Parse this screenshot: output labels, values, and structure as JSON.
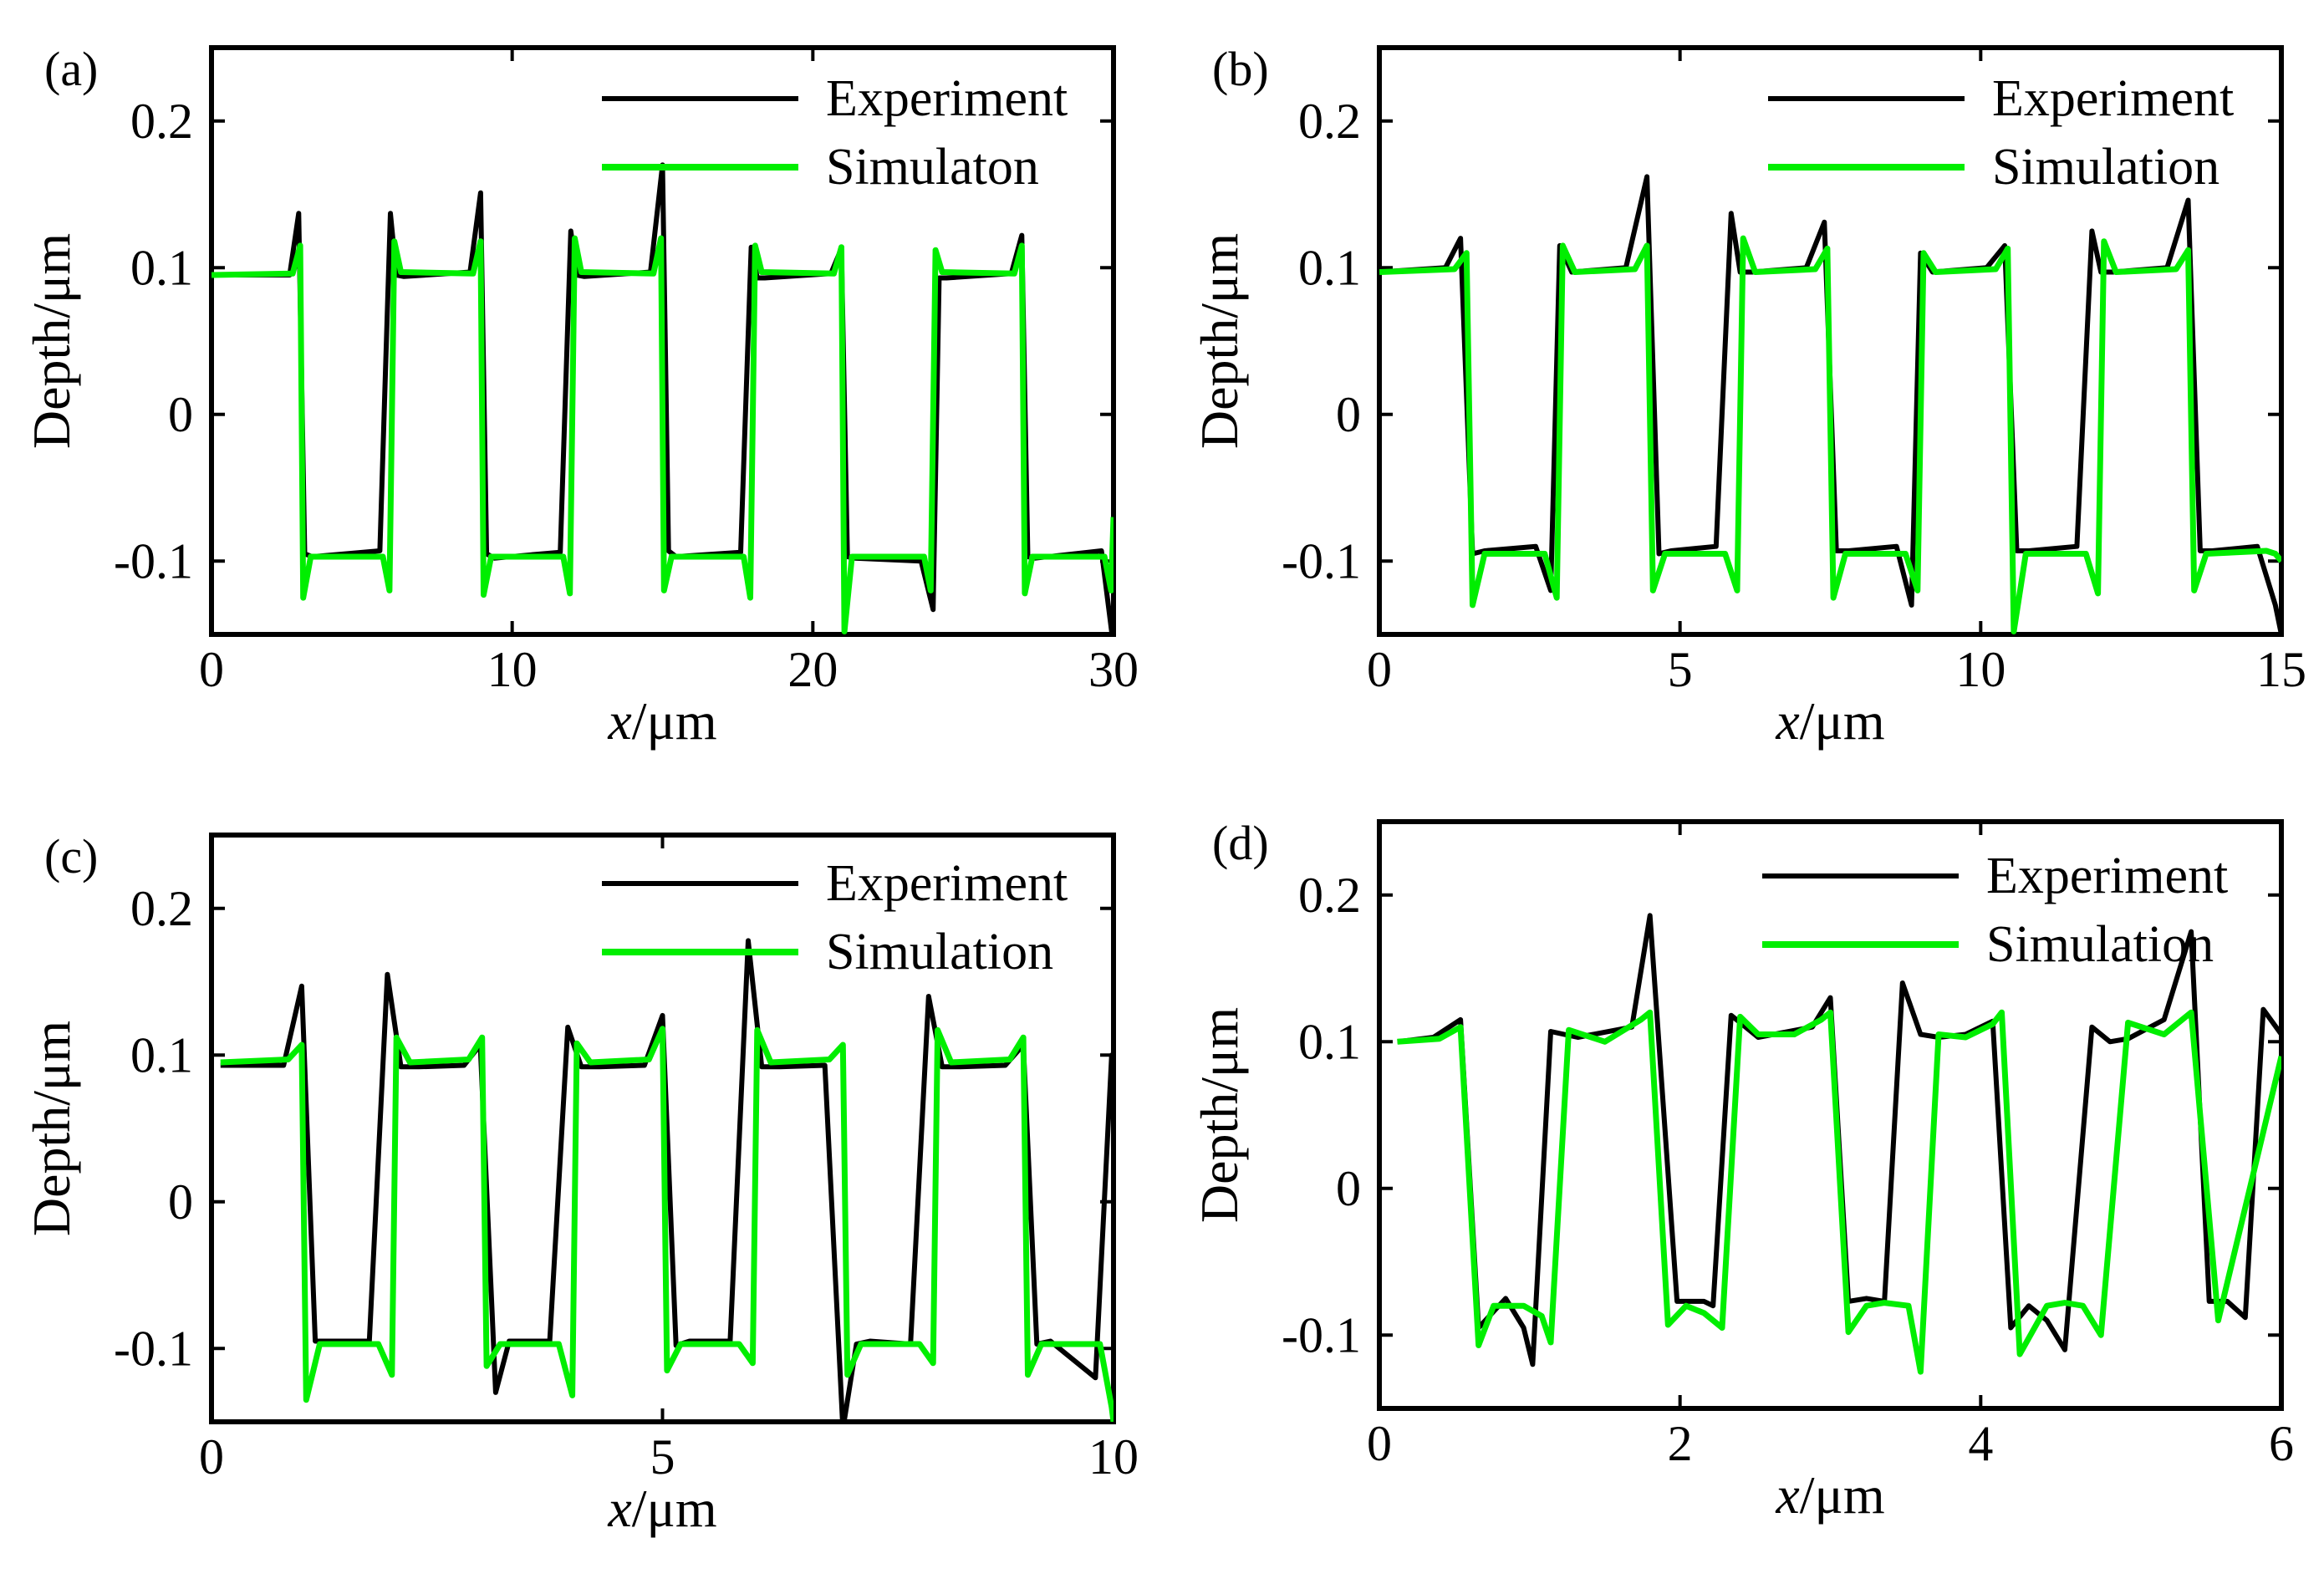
{
  "figure": {
    "x_label_var": "x",
    "x_label_unit": "/μm",
    "y_label": "Depth/μm"
  },
  "colors": {
    "experiment": "#000000",
    "simulation": "#00ee00"
  },
  "chart_data": [
    {
      "type": "line",
      "panel": "(a)",
      "xlabel": "x/μm",
      "ylabel": "Depth/μm",
      "xlim": [
        0,
        30
      ],
      "ylim": [
        -0.15,
        0.25
      ],
      "xticks": [
        "0",
        "10",
        "20",
        "30"
      ],
      "xtick_values": [
        0,
        10,
        20,
        30
      ],
      "yticks": [
        "-0.1",
        "0",
        "0.1",
        "0.2"
      ],
      "ytick_values": [
        -0.1,
        0,
        0.1,
        0.2
      ],
      "period": 6,
      "high": 0.095,
      "low": -0.095,
      "legend": [
        "Experiment",
        "Simulaton"
      ],
      "series": [
        {
          "name": "Experiment",
          "x": [
            0,
            2.6,
            2.9,
            3.1,
            3.35,
            5.6,
            5.95,
            6.15,
            6.4,
            8.6,
            8.95,
            9.15,
            9.4,
            11.6,
            11.95,
            12.15,
            12.4,
            14.6,
            15.0,
            15.2,
            15.45,
            17.6,
            17.95,
            18.15,
            18.4,
            20.6,
            20.95,
            21.15,
            21.4,
            23.6,
            24.0,
            24.2,
            24.45,
            26.6,
            26.95,
            27.15,
            27.4,
            29.6,
            29.95,
            30
          ],
          "y": [
            0.095,
            0.095,
            0.137,
            -0.095,
            -0.097,
            -0.093,
            0.137,
            0.095,
            0.094,
            0.097,
            0.151,
            -0.095,
            -0.098,
            -0.094,
            0.125,
            0.095,
            0.094,
            0.097,
            0.17,
            -0.093,
            -0.097,
            -0.094,
            0.114,
            0.093,
            0.093,
            0.096,
            0.113,
            -0.097,
            -0.098,
            -0.1,
            -0.133,
            0.093,
            0.093,
            0.096,
            0.122,
            -0.097,
            -0.098,
            -0.093,
            -0.15,
            -0.15
          ]
        },
        {
          "name": "Simulaton",
          "x": [
            0,
            2.7,
            2.95,
            3.05,
            3.3,
            5.7,
            5.92,
            6.08,
            6.3,
            8.7,
            8.95,
            9.05,
            9.3,
            11.7,
            11.92,
            12.08,
            12.3,
            14.7,
            14.95,
            15.05,
            15.3,
            17.7,
            17.92,
            18.08,
            18.3,
            20.7,
            20.95,
            21.05,
            21.3,
            23.7,
            23.92,
            24.08,
            24.3,
            26.7,
            26.95,
            27.05,
            27.3,
            29.7,
            29.92,
            30
          ],
          "y": [
            0.095,
            0.096,
            0.115,
            -0.125,
            -0.097,
            -0.097,
            -0.12,
            0.118,
            0.097,
            0.096,
            0.118,
            -0.123,
            -0.097,
            -0.097,
            -0.122,
            0.12,
            0.097,
            0.096,
            0.12,
            -0.12,
            -0.097,
            -0.097,
            -0.125,
            0.115,
            0.097,
            0.096,
            0.114,
            -0.148,
            -0.097,
            -0.097,
            -0.12,
            0.112,
            0.097,
            0.096,
            0.115,
            -0.122,
            -0.097,
            -0.097,
            -0.12,
            -0.07
          ]
        }
      ]
    },
    {
      "type": "line",
      "panel": "(b)",
      "xlabel": "x/μm",
      "ylabel": "Depth/μm",
      "xlim": [
        0,
        15
      ],
      "ylim": [
        -0.15,
        0.25
      ],
      "xticks": [
        "0",
        "5",
        "10",
        "15"
      ],
      "xtick_values": [
        0,
        5,
        10,
        15
      ],
      "yticks": [
        "-0.1",
        "0",
        "0.1",
        "0.2"
      ],
      "ytick_values": [
        -0.1,
        0,
        0.1,
        0.2
      ],
      "period": 3,
      "high": 0.097,
      "low": -0.093,
      "legend": [
        "Experiment",
        "Simulation"
      ],
      "series": [
        {
          "name": "Experiment",
          "x": [
            0,
            1.1,
            1.35,
            1.55,
            1.75,
            2.6,
            2.85,
            3.0,
            3.2,
            4.1,
            4.45,
            4.65,
            4.85,
            5.6,
            5.85,
            6.0,
            6.2,
            7.1,
            7.4,
            7.6,
            7.8,
            8.6,
            8.85,
            9.0,
            9.2,
            10.1,
            10.4,
            10.6,
            10.8,
            11.6,
            11.85,
            12.0,
            12.2,
            13.1,
            13.45,
            13.65,
            13.85,
            14.6,
            14.9,
            15
          ],
          "y": [
            0.097,
            0.1,
            0.12,
            -0.095,
            -0.093,
            -0.09,
            -0.12,
            0.115,
            0.097,
            0.1,
            0.162,
            -0.095,
            -0.093,
            -0.09,
            0.137,
            0.097,
            0.097,
            0.1,
            0.131,
            -0.093,
            -0.093,
            -0.09,
            -0.13,
            0.11,
            0.097,
            0.1,
            0.115,
            -0.093,
            -0.093,
            -0.09,
            0.125,
            0.097,
            0.097,
            0.1,
            0.146,
            -0.093,
            -0.093,
            -0.09,
            -0.13,
            -0.15
          ]
        },
        {
          "name": "Simulation",
          "x": [
            0,
            1.25,
            1.45,
            1.55,
            1.75,
            2.75,
            2.95,
            3.05,
            3.25,
            4.25,
            4.45,
            4.55,
            4.75,
            5.75,
            5.95,
            6.05,
            6.25,
            7.25,
            7.45,
            7.55,
            7.75,
            8.75,
            8.95,
            9.05,
            9.25,
            10.25,
            10.45,
            10.55,
            10.75,
            11.75,
            11.95,
            12.05,
            12.25,
            13.25,
            13.45,
            13.55,
            13.75,
            14.75,
            14.9,
            15
          ],
          "y": [
            0.097,
            0.099,
            0.11,
            -0.13,
            -0.095,
            -0.095,
            -0.125,
            0.115,
            0.097,
            0.099,
            0.115,
            -0.12,
            -0.095,
            -0.095,
            -0.12,
            0.12,
            0.097,
            0.099,
            0.113,
            -0.125,
            -0.095,
            -0.095,
            -0.12,
            0.11,
            0.097,
            0.099,
            0.113,
            -0.148,
            -0.095,
            -0.095,
            -0.122,
            0.118,
            0.097,
            0.099,
            0.112,
            -0.12,
            -0.095,
            -0.093,
            -0.095,
            -0.1
          ]
        }
      ]
    },
    {
      "type": "line",
      "panel": "(c)",
      "xlabel": "x/μm",
      "ylabel": "Depth/μm",
      "xlim": [
        0,
        10
      ],
      "ylim": [
        -0.15,
        0.25
      ],
      "xticks": [
        "0",
        "5",
        "10"
      ],
      "xtick_values": [
        0,
        5,
        10
      ],
      "yticks": [
        "-0.1",
        "0",
        "0.1",
        "0.2"
      ],
      "ytick_values": [
        -0.1,
        0,
        0.1,
        0.2
      ],
      "period": 2,
      "high": 0.092,
      "low": -0.095,
      "legend": [
        "Experiment",
        "Simulation"
      ],
      "series": [
        {
          "name": "Experiment",
          "x": [
            0.1,
            0.8,
            1.0,
            1.15,
            1.3,
            1.75,
            1.95,
            2.1,
            2.3,
            2.8,
            2.98,
            3.15,
            3.3,
            3.75,
            3.95,
            4.1,
            4.3,
            4.8,
            5.0,
            5.15,
            5.3,
            5.75,
            5.95,
            6.1,
            6.3,
            6.8,
            7.0,
            7.15,
            7.3,
            7.75,
            7.95,
            8.1,
            8.3,
            8.8,
            9.0,
            9.15,
            9.3,
            9.8,
            9.98,
            10
          ],
          "y": [
            0.093,
            0.093,
            0.147,
            -0.095,
            -0.095,
            -0.095,
            0.155,
            0.092,
            0.092,
            0.093,
            0.107,
            -0.13,
            -0.095,
            -0.095,
            0.119,
            0.092,
            0.092,
            0.093,
            0.127,
            -0.098,
            -0.095,
            -0.095,
            0.178,
            0.092,
            0.092,
            0.093,
            -0.155,
            -0.097,
            -0.095,
            -0.097,
            0.14,
            0.092,
            0.092,
            0.093,
            0.107,
            -0.097,
            -0.095,
            -0.12,
            0.1,
            0.1
          ]
        },
        {
          "name": "Simulation",
          "x": [
            0.1,
            0.85,
            1.0,
            1.05,
            1.2,
            1.85,
            2.0,
            2.05,
            2.2,
            2.85,
            3.0,
            3.05,
            3.2,
            3.85,
            4.0,
            4.05,
            4.2,
            4.85,
            5.0,
            5.05,
            5.2,
            5.85,
            6.0,
            6.05,
            6.2,
            6.85,
            7.0,
            7.05,
            7.2,
            7.85,
            8.0,
            8.05,
            8.2,
            8.85,
            9.0,
            9.05,
            9.2,
            9.85,
            9.98,
            10
          ],
          "y": [
            0.095,
            0.097,
            0.107,
            -0.135,
            -0.097,
            -0.097,
            -0.118,
            0.112,
            0.095,
            0.097,
            0.112,
            -0.112,
            -0.097,
            -0.097,
            -0.132,
            0.108,
            0.095,
            0.097,
            0.118,
            -0.115,
            -0.097,
            -0.097,
            -0.11,
            0.117,
            0.095,
            0.097,
            0.107,
            -0.118,
            -0.097,
            -0.097,
            -0.11,
            0.117,
            0.095,
            0.097,
            0.112,
            -0.118,
            -0.097,
            -0.097,
            -0.14,
            -0.15
          ]
        }
      ]
    },
    {
      "type": "line",
      "panel": "(d)",
      "xlabel": "x/μm",
      "ylabel": "Depth/μm",
      "xlim": [
        0,
        6
      ],
      "ylim": [
        -0.15,
        0.25
      ],
      "xticks": [
        "0",
        "2",
        "4",
        "6"
      ],
      "xtick_values": [
        0,
        2,
        4,
        6
      ],
      "yticks": [
        "-0.1",
        "0",
        "0.1",
        "0.2"
      ],
      "ytick_values": [
        -0.1,
        0,
        0.1,
        0.2
      ],
      "period": 1.2,
      "high": 0.103,
      "low": -0.077,
      "legend": [
        "Experiment",
        "Simulation"
      ],
      "series": [
        {
          "name": "Experiment",
          "x": [
            0.12,
            0.36,
            0.54,
            0.66,
            0.84,
            0.96,
            1.02,
            1.14,
            1.32,
            1.68,
            1.8,
            1.98,
            2.16,
            2.22,
            2.34,
            2.52,
            2.88,
            3.0,
            3.12,
            3.24,
            3.36,
            3.48,
            3.6,
            3.72,
            3.9,
            4.08,
            4.2,
            4.32,
            4.44,
            4.56,
            4.74,
            4.86,
            4.98,
            5.22,
            5.4,
            5.52,
            5.64,
            5.76,
            5.88,
            6.0
          ],
          "y": [
            0.1,
            0.103,
            0.115,
            -0.095,
            -0.075,
            -0.095,
            -0.12,
            0.107,
            0.103,
            0.11,
            0.186,
            -0.077,
            -0.077,
            -0.08,
            0.118,
            0.103,
            0.11,
            0.13,
            -0.077,
            -0.075,
            -0.077,
            0.14,
            0.105,
            0.103,
            0.105,
            0.114,
            -0.095,
            -0.08,
            -0.09,
            -0.11,
            0.11,
            0.1,
            0.102,
            0.115,
            0.175,
            -0.077,
            -0.077,
            -0.088,
            0.122,
            0.105
          ]
        },
        {
          "name": "Simulation",
          "x": [
            0.12,
            0.4,
            0.54,
            0.66,
            0.76,
            0.96,
            1.08,
            1.14,
            1.26,
            1.5,
            1.74,
            1.8,
            1.92,
            2.04,
            2.16,
            2.28,
            2.4,
            2.52,
            2.76,
            2.94,
            3.0,
            3.12,
            3.24,
            3.36,
            3.52,
            3.6,
            3.72,
            3.9,
            4.08,
            4.14,
            4.26,
            4.44,
            4.56,
            4.68,
            4.8,
            4.98,
            5.22,
            5.4,
            5.58,
            6.0
          ],
          "y": [
            0.1,
            0.102,
            0.11,
            -0.107,
            -0.08,
            -0.08,
            -0.087,
            -0.105,
            0.108,
            0.1,
            0.115,
            0.12,
            -0.093,
            -0.08,
            -0.085,
            -0.095,
            0.117,
            0.105,
            0.105,
            0.115,
            0.12,
            -0.098,
            -0.08,
            -0.078,
            -0.08,
            -0.125,
            0.105,
            0.103,
            0.112,
            0.12,
            -0.113,
            -0.08,
            -0.078,
            -0.08,
            -0.1,
            0.113,
            0.105,
            0.12,
            -0.09,
            0.09
          ]
        }
      ]
    }
  ]
}
